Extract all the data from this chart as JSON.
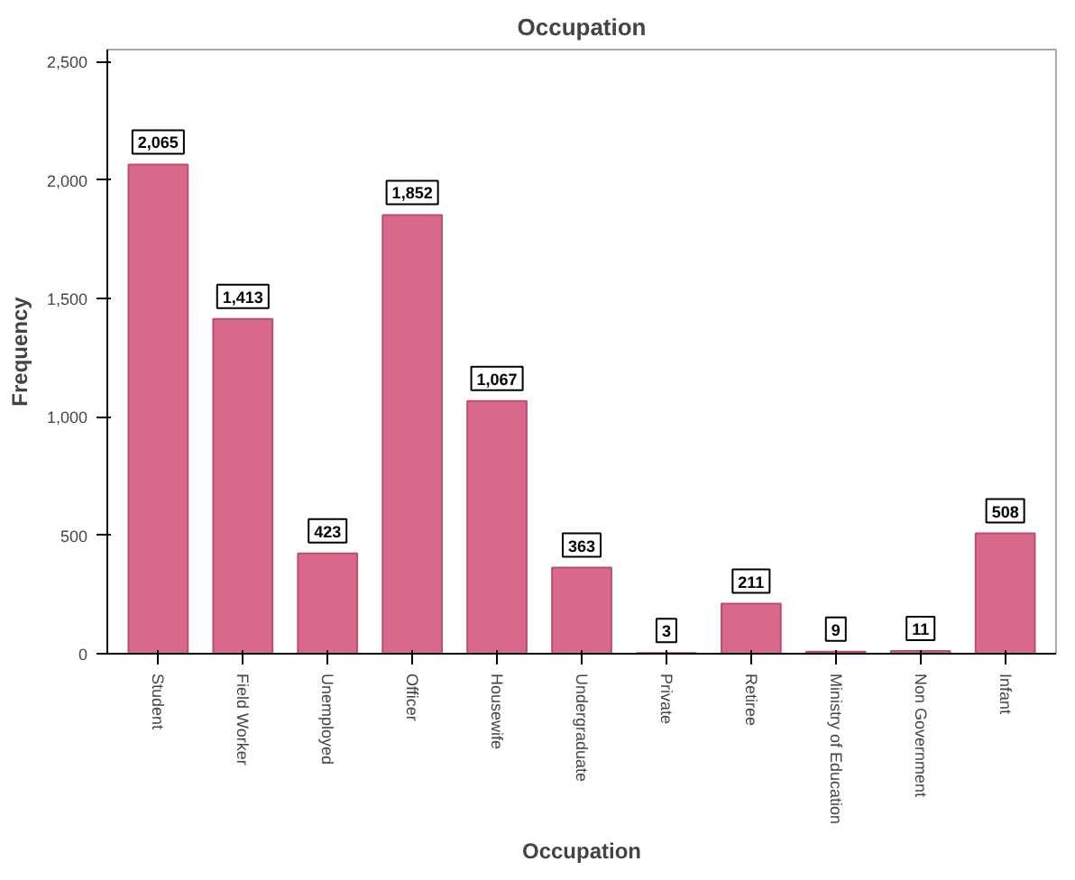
{
  "chart_data": {
    "type": "bar",
    "title": "Occupation",
    "xlabel": "Occupation",
    "ylabel": "Frequency",
    "categories": [
      "Student",
      "Field Worker",
      "Unemployed",
      "Officer",
      "Housewife",
      "Undergraduate",
      "Private",
      "Retiree",
      "Ministry of Education",
      "Non Government",
      "Infant"
    ],
    "values": [
      2065,
      1413,
      423,
      1852,
      1067,
      363,
      3,
      211,
      9,
      11,
      508
    ],
    "color": "#d9698a",
    "ylim": [
      0,
      2550
    ],
    "yticks": [
      0,
      {
        "value": 500,
        "label": "500"
      },
      {
        "value": 1000,
        "label": "1,000"
      },
      {
        "value": 1500,
        "label": "1,500"
      },
      {
        "value": 2000,
        "label": "2,000"
      },
      {
        "value": 2500,
        "label": "2,500"
      }
    ],
    "value_labels": [
      "2,065",
      "1,413",
      "423",
      "1,852",
      "1,067",
      "363",
      "3",
      "211",
      "9",
      "11",
      "508"
    ],
    "grid": false
  }
}
